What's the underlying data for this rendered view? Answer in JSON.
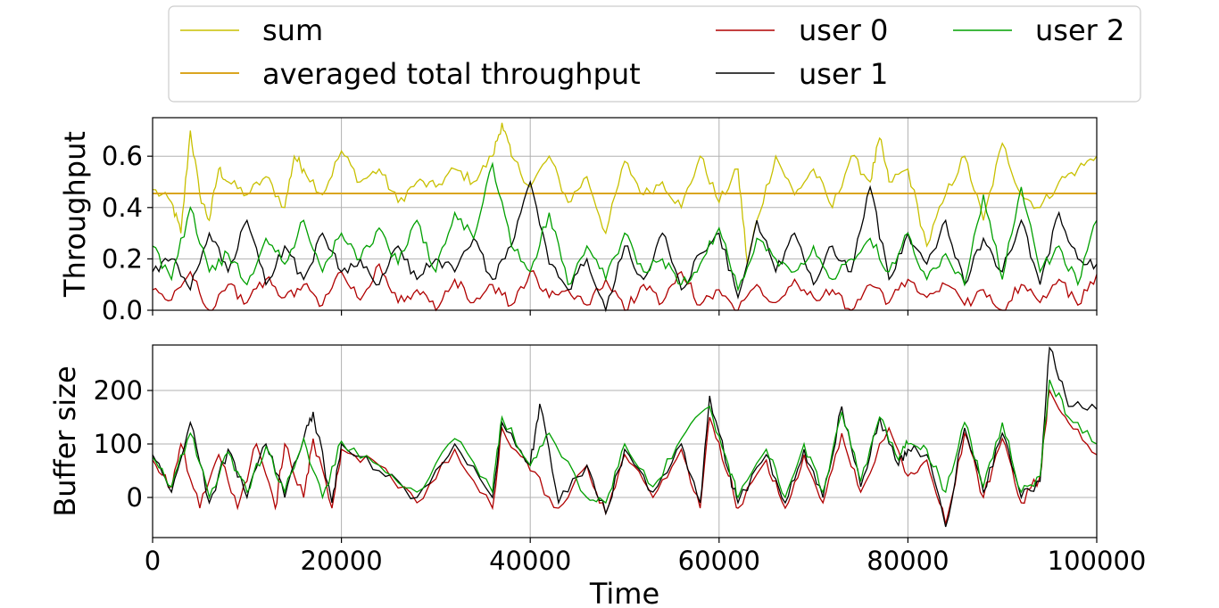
{
  "chart_data": [
    {
      "type": "line",
      "panel": "top",
      "ylabel": "Throughput",
      "xlabel": "",
      "xlim": [
        0,
        100000
      ],
      "ylim": [
        0,
        0.75
      ],
      "yticks": [
        0.0,
        0.2,
        0.4,
        0.6
      ],
      "ytick_labels": [
        "0.0",
        "0.2",
        "0.4",
        "0.6"
      ],
      "xticks": [
        0,
        20000,
        40000,
        60000,
        80000,
        100000
      ],
      "grid": true,
      "series": [
        {
          "name": "sum",
          "color": "#c8c000",
          "x": [
            0,
            2000,
            3000,
            4000,
            5000,
            6000,
            7000,
            8000,
            10000,
            12000,
            14000,
            15000,
            16000,
            18000,
            20000,
            22000,
            24000,
            26000,
            28000,
            30000,
            32000,
            34000,
            36000,
            37000,
            38000,
            40000,
            42000,
            44000,
            46000,
            48000,
            50000,
            52000,
            54000,
            56000,
            58000,
            60000,
            62000,
            63000,
            64000,
            66000,
            68000,
            70000,
            72000,
            74000,
            76000,
            77000,
            78000,
            80000,
            82000,
            84000,
            86000,
            88000,
            90000,
            92000,
            94000,
            96000,
            98000,
            100000
          ],
          "values": [
            0.47,
            0.42,
            0.3,
            0.7,
            0.45,
            0.35,
            0.55,
            0.5,
            0.45,
            0.52,
            0.4,
            0.6,
            0.55,
            0.45,
            0.62,
            0.5,
            0.55,
            0.42,
            0.5,
            0.48,
            0.55,
            0.5,
            0.6,
            0.73,
            0.6,
            0.48,
            0.6,
            0.42,
            0.52,
            0.3,
            0.58,
            0.45,
            0.5,
            0.4,
            0.6,
            0.42,
            0.55,
            0.18,
            0.35,
            0.6,
            0.45,
            0.55,
            0.4,
            0.6,
            0.5,
            0.67,
            0.5,
            0.55,
            0.25,
            0.45,
            0.6,
            0.35,
            0.65,
            0.45,
            0.4,
            0.5,
            0.55,
            0.6
          ]
        },
        {
          "name": "averaged total throughput",
          "color": "#daa520",
          "x": [
            0,
            100000
          ],
          "values": [
            0.455,
            0.455
          ]
        },
        {
          "name": "user 0",
          "color": "#b00000",
          "x": [
            0,
            2000,
            4000,
            6000,
            8000,
            10000,
            12000,
            14000,
            16000,
            18000,
            20000,
            22000,
            24000,
            26000,
            28000,
            30000,
            32000,
            34000,
            36000,
            38000,
            40000,
            42000,
            44000,
            46000,
            48000,
            50000,
            52000,
            54000,
            56000,
            58000,
            60000,
            62000,
            64000,
            66000,
            68000,
            70000,
            72000,
            74000,
            76000,
            78000,
            80000,
            82000,
            84000,
            86000,
            88000,
            90000,
            92000,
            94000,
            96000,
            98000,
            100000
          ],
          "values": [
            0.08,
            0.04,
            0.15,
            0.0,
            0.1,
            0.03,
            0.12,
            0.05,
            0.1,
            0.02,
            0.15,
            0.04,
            0.18,
            0.03,
            0.08,
            0.0,
            0.12,
            0.03,
            0.1,
            0.02,
            0.15,
            0.05,
            0.08,
            0.02,
            0.12,
            0.0,
            0.1,
            0.03,
            0.15,
            0.02,
            0.08,
            0.0,
            0.1,
            0.03,
            0.12,
            0.05,
            0.08,
            0.0,
            0.1,
            0.03,
            0.12,
            0.05,
            0.1,
            0.02,
            0.08,
            0.0,
            0.1,
            0.03,
            0.12,
            0.02,
            0.14
          ]
        },
        {
          "name": "user 1",
          "color": "#000000",
          "x": [
            0,
            2000,
            4000,
            6000,
            8000,
            10000,
            12000,
            14000,
            16000,
            18000,
            20000,
            22000,
            24000,
            26000,
            28000,
            30000,
            32000,
            34000,
            36000,
            38000,
            40000,
            42000,
            44000,
            46000,
            48000,
            50000,
            52000,
            54000,
            56000,
            58000,
            60000,
            62000,
            64000,
            66000,
            68000,
            70000,
            72000,
            74000,
            76000,
            78000,
            80000,
            82000,
            84000,
            86000,
            88000,
            90000,
            92000,
            94000,
            96000,
            98000,
            100000
          ],
          "values": [
            0.15,
            0.2,
            0.08,
            0.3,
            0.15,
            0.35,
            0.1,
            0.25,
            0.12,
            0.3,
            0.15,
            0.2,
            0.1,
            0.25,
            0.12,
            0.2,
            0.15,
            0.28,
            0.12,
            0.25,
            0.5,
            0.18,
            0.08,
            0.2,
            0.0,
            0.25,
            0.12,
            0.3,
            0.08,
            0.22,
            0.3,
            0.05,
            0.35,
            0.15,
            0.3,
            0.1,
            0.25,
            0.15,
            0.48,
            0.12,
            0.3,
            0.18,
            0.35,
            0.1,
            0.28,
            0.15,
            0.35,
            0.1,
            0.38,
            0.2,
            0.18
          ]
        },
        {
          "name": "user 2",
          "color": "#00a000",
          "x": [
            0,
            2000,
            4000,
            6000,
            8000,
            10000,
            12000,
            14000,
            16000,
            18000,
            20000,
            22000,
            24000,
            26000,
            28000,
            30000,
            32000,
            34000,
            36000,
            38000,
            40000,
            42000,
            44000,
            46000,
            48000,
            50000,
            52000,
            54000,
            56000,
            58000,
            60000,
            62000,
            64000,
            66000,
            68000,
            70000,
            72000,
            74000,
            76000,
            78000,
            80000,
            82000,
            84000,
            86000,
            88000,
            90000,
            92000,
            94000,
            96000,
            98000,
            100000
          ],
          "values": [
            0.25,
            0.12,
            0.4,
            0.15,
            0.22,
            0.1,
            0.28,
            0.18,
            0.35,
            0.15,
            0.3,
            0.2,
            0.32,
            0.18,
            0.35,
            0.15,
            0.38,
            0.28,
            0.57,
            0.25,
            0.15,
            0.38,
            0.1,
            0.25,
            0.12,
            0.3,
            0.15,
            0.2,
            0.1,
            0.18,
            0.32,
            0.08,
            0.28,
            0.2,
            0.15,
            0.25,
            0.12,
            0.2,
            0.28,
            0.15,
            0.3,
            0.12,
            0.22,
            0.1,
            0.45,
            0.12,
            0.48,
            0.15,
            0.25,
            0.1,
            0.35
          ]
        }
      ]
    },
    {
      "type": "line",
      "panel": "bottom",
      "ylabel": "Buffer size",
      "xlabel": "Time",
      "xlim": [
        0,
        100000
      ],
      "ylim": [
        -75,
        285
      ],
      "yticks": [
        0,
        100,
        200
      ],
      "ytick_labels": [
        "0",
        "100",
        "200"
      ],
      "xticks": [
        0,
        20000,
        40000,
        60000,
        80000,
        100000
      ],
      "xtick_labels": [
        "0",
        "20000",
        "40000",
        "60000",
        "80000",
        "100000"
      ],
      "grid": true,
      "series": [
        {
          "name": "user 0",
          "color": "#b00000",
          "x": [
            0,
            2000,
            3000,
            5000,
            7000,
            9000,
            11000,
            13000,
            14000,
            16000,
            17000,
            19000,
            20000,
            24000,
            28000,
            32000,
            36000,
            37000,
            40000,
            43000,
            46000,
            48000,
            50000,
            53000,
            56000,
            58000,
            59000,
            61000,
            62000,
            65000,
            67000,
            69000,
            71000,
            73000,
            75000,
            78000,
            80000,
            82000,
            84000,
            86000,
            88000,
            90000,
            92000,
            94000,
            95000,
            97000,
            100000
          ],
          "values": [
            70,
            20,
            100,
            -20,
            80,
            -20,
            100,
            -20,
            100,
            0,
            110,
            -20,
            90,
            60,
            -10,
            90,
            -20,
            130,
            50,
            -20,
            60,
            -30,
            80,
            0,
            90,
            -20,
            150,
            40,
            -20,
            70,
            -20,
            80,
            -10,
            120,
            10,
            130,
            40,
            70,
            -50,
            120,
            0,
            110,
            -10,
            40,
            200,
            140,
            80
          ]
        },
        {
          "name": "user 1",
          "color": "#000000",
          "x": [
            0,
            2000,
            4000,
            6000,
            8000,
            10000,
            12000,
            14000,
            16000,
            17000,
            19000,
            20000,
            24000,
            28000,
            32000,
            36000,
            37000,
            40000,
            41000,
            43000,
            46000,
            48000,
            50000,
            53000,
            56000,
            58000,
            59000,
            61000,
            62000,
            65000,
            67000,
            69000,
            71000,
            73000,
            75000,
            77000,
            79000,
            80000,
            82000,
            84000,
            86000,
            88000,
            90000,
            92000,
            94000,
            95000,
            97000,
            100000
          ],
          "values": [
            80,
            10,
            140,
            -10,
            90,
            0,
            100,
            0,
            110,
            160,
            -10,
            100,
            50,
            0,
            100,
            0,
            140,
            60,
            175,
            -10,
            60,
            -30,
            90,
            10,
            100,
            -10,
            190,
            50,
            -10,
            80,
            -10,
            90,
            0,
            170,
            20,
            150,
            60,
            90,
            80,
            -55,
            130,
            10,
            120,
            0,
            30,
            280,
            170,
            165
          ]
        },
        {
          "name": "user 2",
          "color": "#00a000",
          "x": [
            0,
            2000,
            4000,
            6000,
            8000,
            10000,
            12000,
            14000,
            16000,
            18000,
            20000,
            24000,
            28000,
            32000,
            36000,
            37000,
            40000,
            42000,
            46000,
            48000,
            50000,
            53000,
            56000,
            59000,
            61000,
            62000,
            65000,
            67000,
            69000,
            71000,
            73000,
            75000,
            77000,
            79000,
            80000,
            82000,
            84000,
            86000,
            88000,
            90000,
            92000,
            94000,
            95000,
            97000,
            100000
          ],
          "values": [
            75,
            20,
            120,
            0,
            85,
            10,
            95,
            10,
            110,
            0,
            105,
            60,
            10,
            110,
            10,
            150,
            60,
            120,
            0,
            -10,
            100,
            20,
            110,
            170,
            60,
            0,
            90,
            0,
            100,
            10,
            160,
            30,
            150,
            70,
            100,
            90,
            10,
            140,
            20,
            140,
            10,
            40,
            220,
            150,
            100
          ]
        }
      ]
    }
  ],
  "legend": {
    "location": "top",
    "entries": [
      {
        "label": "sum",
        "color": "#c8c000"
      },
      {
        "label": "averaged total throughput",
        "color": "#daa520"
      },
      {
        "label": "user 0",
        "color": "#b00000"
      },
      {
        "label": "user 1",
        "color": "#000000"
      },
      {
        "label": "user 2",
        "color": "#00a000"
      }
    ]
  }
}
